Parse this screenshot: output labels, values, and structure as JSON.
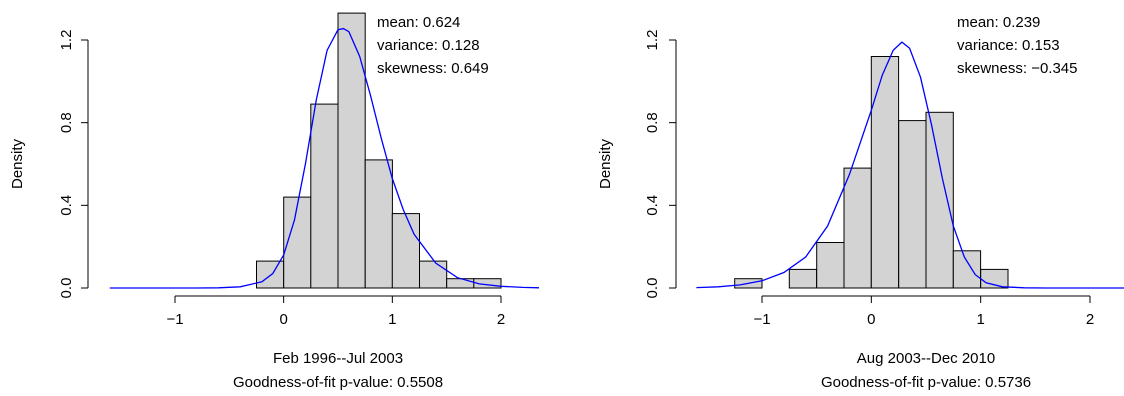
{
  "colors": {
    "bar_fill": "#d3d3d3",
    "bar_stroke": "#000000",
    "curve": "#0000ff",
    "background": "#ffffff"
  },
  "chart_data": [
    {
      "type": "bar",
      "title": "",
      "xlabel": "Feb 1996--Jul 2003",
      "subtitle": "Goodness-of-fit p-value: 0.5508",
      "ylabel": "Density",
      "xlim": [
        -1.65,
        2.35
      ],
      "ylim": [
        0,
        1.32
      ],
      "x_ticks": [
        -1,
        0,
        1,
        2
      ],
      "x_tick_labels": [
        "−1",
        "0",
        "1",
        "2"
      ],
      "y_ticks": [
        0,
        0.4,
        0.8,
        1.2
      ],
      "y_tick_labels": [
        "0.0",
        "0.4",
        "0.8",
        "1.2"
      ],
      "grid": false,
      "bins": [
        {
          "x0": -0.25,
          "x1": 0.0,
          "density": 0.13
        },
        {
          "x0": 0.0,
          "x1": 0.25,
          "density": 0.44
        },
        {
          "x0": 0.25,
          "x1": 0.5,
          "density": 0.89
        },
        {
          "x0": 0.5,
          "x1": 0.75,
          "density": 1.33
        },
        {
          "x0": 0.75,
          "x1": 1.0,
          "density": 0.62
        },
        {
          "x0": 1.0,
          "x1": 1.25,
          "density": 0.36
        },
        {
          "x0": 1.25,
          "x1": 1.5,
          "density": 0.13
        },
        {
          "x0": 1.5,
          "x1": 1.75,
          "density": 0.045
        },
        {
          "x0": 1.75,
          "x1": 2.0,
          "density": 0.045
        }
      ],
      "fitted_curve": {
        "x": [
          -1.6,
          -1.4,
          -1.2,
          -1.0,
          -0.8,
          -0.6,
          -0.4,
          -0.2,
          -0.1,
          0.0,
          0.1,
          0.2,
          0.3,
          0.4,
          0.5,
          0.55,
          0.6,
          0.7,
          0.8,
          0.9,
          1.0,
          1.1,
          1.2,
          1.4,
          1.6,
          1.8,
          2.0,
          2.2,
          2.35
        ],
        "y": [
          0,
          0,
          0,
          0,
          0,
          0.001,
          0.006,
          0.03,
          0.07,
          0.16,
          0.33,
          0.6,
          0.91,
          1.15,
          1.25,
          1.255,
          1.24,
          1.12,
          0.93,
          0.72,
          0.53,
          0.38,
          0.26,
          0.12,
          0.05,
          0.02,
          0.008,
          0.003,
          0.001
        ]
      },
      "annotations": [
        {
          "label": "mean:",
          "value": "0.624"
        },
        {
          "label": "variance:",
          "value": "0.128"
        },
        {
          "label": "skewness:",
          "value": "0.649"
        }
      ]
    },
    {
      "type": "bar",
      "title": "",
      "xlabel": "Aug 2003--Dec 2010",
      "subtitle": "Goodness-of-fit p-value: 0.5736",
      "ylabel": "Density",
      "xlim": [
        -1.65,
        2.35
      ],
      "ylim": [
        0,
        1.32
      ],
      "x_ticks": [
        -1,
        0,
        1,
        2
      ],
      "x_tick_labels": [
        "−1",
        "0",
        "1",
        "2"
      ],
      "y_ticks": [
        0,
        0.4,
        0.8,
        1.2
      ],
      "y_tick_labels": [
        "0.0",
        "0.4",
        "0.8",
        "1.2"
      ],
      "grid": false,
      "bins": [
        {
          "x0": -1.25,
          "x1": -1.0,
          "density": 0.045
        },
        {
          "x0": -1.0,
          "x1": -0.75,
          "density": 0.0
        },
        {
          "x0": -0.75,
          "x1": -0.5,
          "density": 0.09
        },
        {
          "x0": -0.5,
          "x1": -0.25,
          "density": 0.22
        },
        {
          "x0": -0.25,
          "x1": 0.0,
          "density": 0.58
        },
        {
          "x0": 0.0,
          "x1": 0.25,
          "density": 1.12
        },
        {
          "x0": 0.25,
          "x1": 0.5,
          "density": 0.81
        },
        {
          "x0": 0.5,
          "x1": 0.75,
          "density": 0.85
        },
        {
          "x0": 0.75,
          "x1": 1.0,
          "density": 0.18
        },
        {
          "x0": 1.0,
          "x1": 1.25,
          "density": 0.09
        }
      ],
      "fitted_curve": {
        "x": [
          -1.6,
          -1.4,
          -1.2,
          -1.0,
          -0.8,
          -0.6,
          -0.4,
          -0.2,
          0.0,
          0.1,
          0.2,
          0.28,
          0.35,
          0.45,
          0.55,
          0.65,
          0.75,
          0.85,
          0.95,
          1.05,
          1.2,
          1.4,
          1.6,
          1.8,
          2.0,
          2.2,
          2.35
        ],
        "y": [
          0.002,
          0.006,
          0.015,
          0.035,
          0.075,
          0.15,
          0.3,
          0.55,
          0.86,
          1.03,
          1.15,
          1.19,
          1.16,
          1.02,
          0.79,
          0.53,
          0.3,
          0.15,
          0.065,
          0.025,
          0.006,
          0.001,
          0,
          0,
          0,
          0,
          0
        ]
      },
      "annotations": [
        {
          "label": "mean:",
          "value": " 0.239"
        },
        {
          "label": "variance:",
          "value": " 0.153"
        },
        {
          "label": "skewness:",
          "value": "−0.345"
        }
      ]
    }
  ]
}
